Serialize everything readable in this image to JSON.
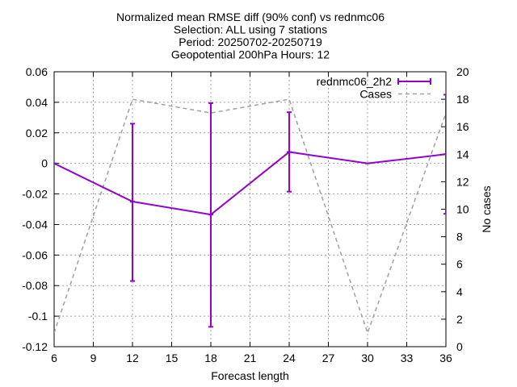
{
  "chart_data": {
    "type": "line",
    "title_lines": [
      "Normalized mean RMSE diff (90% conf) vs rednmc06",
      "Selection: ALL using     7 stations",
      "Period: 20250702-20250719",
      "Geopotential 200hPa   Hours: 12"
    ],
    "xlabel": "Forecast length",
    "ylabel": "",
    "y2label": "No cases",
    "xlim": [
      6,
      36
    ],
    "ylim": [
      -0.12,
      0.06
    ],
    "y2lim": [
      0,
      20
    ],
    "xticks": [
      6,
      9,
      12,
      15,
      18,
      21,
      24,
      27,
      30,
      33,
      36
    ],
    "yticks": [
      -0.12,
      -0.1,
      -0.08,
      -0.06,
      -0.04,
      -0.02,
      0,
      0.02,
      0.04,
      0.06
    ],
    "ytick_labels": [
      "-0.12",
      "-0.1",
      "-0.08",
      "-0.06",
      "-0.04",
      "-0.02",
      "0",
      "0.02",
      "0.04",
      "0.06"
    ],
    "y2ticks": [
      0,
      2,
      4,
      6,
      8,
      10,
      12,
      14,
      16,
      18,
      20
    ],
    "grid": true,
    "legend_position": "top-right",
    "series": [
      {
        "name": "rednmc06_2h2",
        "axis": "left",
        "style": "errorbars",
        "color": "#9400d3",
        "x": [
          6,
          12,
          18,
          24,
          30,
          36
        ],
        "y": [
          0.0,
          -0.025,
          -0.0335,
          0.0075,
          0.0,
          0.006
        ],
        "ylow": [
          0.0,
          -0.077,
          -0.107,
          -0.0185,
          0.0,
          -0.033
        ],
        "yhigh": [
          0.0,
          0.026,
          0.0395,
          0.0335,
          0.0,
          0.045
        ]
      },
      {
        "name": "Cases",
        "axis": "right",
        "style": "dashed",
        "color": "#a0a0a0",
        "x": [
          6,
          12,
          18,
          24,
          30,
          36
        ],
        "y": [
          1,
          18,
          17,
          18,
          1,
          17
        ]
      }
    ]
  }
}
